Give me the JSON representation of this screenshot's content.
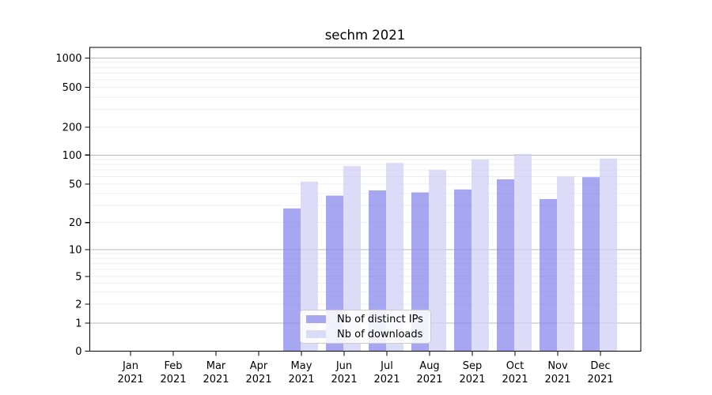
{
  "title": "sechm 2021",
  "legend": {
    "items": [
      {
        "label": "Nb of distinct IPs",
        "key": "ips"
      },
      {
        "label": "Nb of downloads",
        "key": "downloads"
      }
    ]
  },
  "colors": {
    "ips": "#a7a7f0",
    "downloads": "#dbdbf8",
    "ips_fill": "#8585eb",
    "downloads_fill": "#cfcff5",
    "bar_fill_opacity": 0.72,
    "minor_grid": "#ededed",
    "major_grid": "#b9b9b9",
    "axis": "#000000",
    "legend_border": "#cccccc"
  },
  "chart_data": {
    "type": "bar",
    "title": "sechm 2021",
    "categories": [
      "Jan 2021",
      "Feb 2021",
      "Mar 2021",
      "Apr 2021",
      "May 2021",
      "Jun 2021",
      "Jul 2021",
      "Aug 2021",
      "Sep 2021",
      "Oct 2021",
      "Nov 2021",
      "Dec 2021"
    ],
    "series": [
      {
        "name": "Nb of distinct IPs",
        "key": "ips",
        "values": [
          0,
          0,
          0,
          0,
          28,
          38,
          43,
          41,
          44,
          56,
          35,
          59
        ]
      },
      {
        "name": "Nb of downloads",
        "key": "downloads",
        "values": [
          0,
          0,
          0,
          0,
          53,
          77,
          83,
          70,
          90,
          103,
          60,
          92
        ]
      }
    ],
    "y_ticks": [
      0,
      1,
      2,
      5,
      10,
      20,
      50,
      100,
      200,
      500,
      1000
    ],
    "yscale": "log-like with zero baseline",
    "ylim": [
      0,
      1300
    ],
    "xlabel": "",
    "ylabel": "",
    "grid": true,
    "legend_position": "lower center inside plot"
  }
}
